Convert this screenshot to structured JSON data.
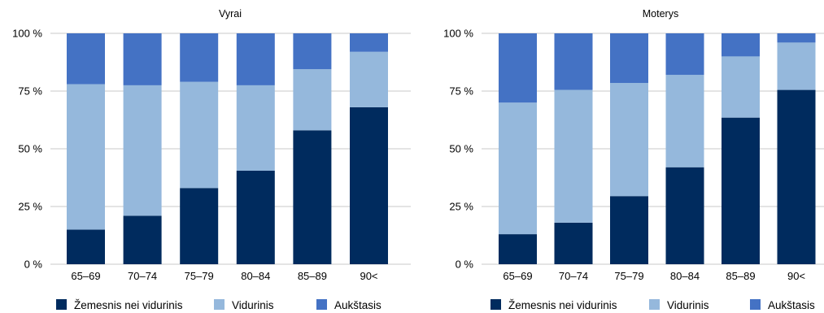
{
  "chart_data": [
    {
      "type": "bar",
      "stacked": true,
      "title": "Vyrai",
      "categories": [
        "65–69",
        "70–74",
        "75–79",
        "80–84",
        "85–89",
        "90<"
      ],
      "series": [
        {
          "name": "Žemesnis nei vidurinis",
          "color": "#002b5e",
          "values": [
            15,
            21,
            33,
            40.5,
            58,
            68
          ]
        },
        {
          "name": "Vidurinis",
          "color": "#95b8dc",
          "values": [
            63,
            56.5,
            46,
            37,
            26.5,
            24
          ]
        },
        {
          "name": "Aukštasis",
          "color": "#4472c4",
          "values": [
            22,
            22.5,
            21,
            22.5,
            15.5,
            8
          ]
        }
      ],
      "yticks": [
        "0 %",
        "25 %",
        "50 %",
        "75 %",
        "100 %"
      ],
      "ylim": [
        0,
        100
      ],
      "grid": true,
      "legend": "bottom"
    },
    {
      "type": "bar",
      "stacked": true,
      "title": "Moterys",
      "categories": [
        "65–69",
        "70–74",
        "75–79",
        "80–84",
        "85–89",
        "90<"
      ],
      "series": [
        {
          "name": "Žemesnis nei vidurinis",
          "color": "#002b5e",
          "values": [
            13,
            18,
            29.5,
            42,
            63.5,
            75.5
          ]
        },
        {
          "name": "Vidurinis",
          "color": "#95b8dc",
          "values": [
            57,
            57.5,
            49,
            40,
            26.5,
            20.5
          ]
        },
        {
          "name": "Aukštasis",
          "color": "#4472c4",
          "values": [
            30,
            24.5,
            21.5,
            18,
            10,
            4
          ]
        }
      ],
      "yticks": [
        "0 %",
        "25 %",
        "50 %",
        "75 %",
        "100 %"
      ],
      "ylim": [
        0,
        100
      ],
      "grid": true,
      "legend": "bottom"
    }
  ]
}
